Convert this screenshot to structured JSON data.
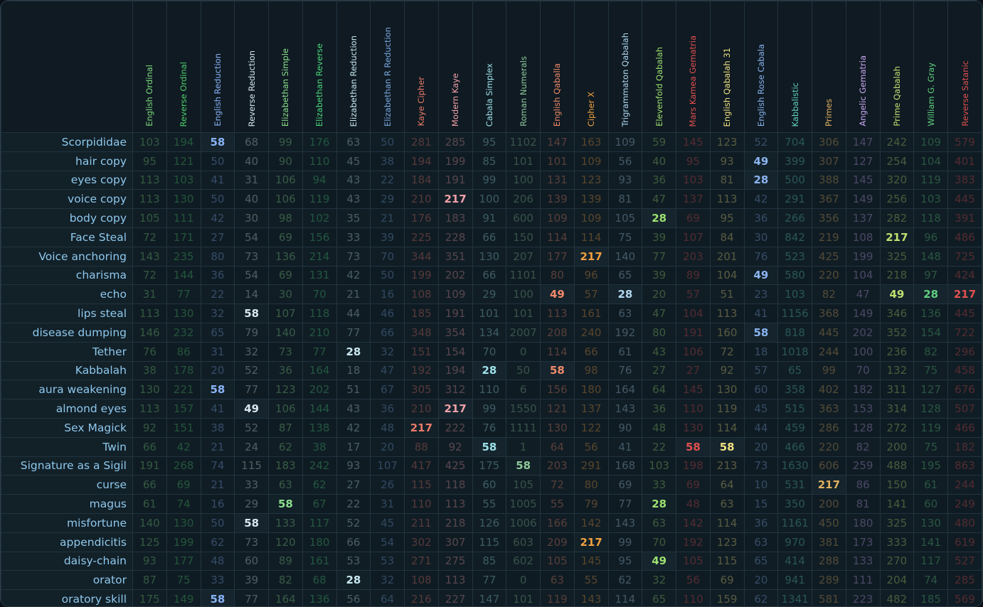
{
  "table": {
    "highlight": [
      28,
      49,
      58,
      217
    ],
    "columns": [
      {
        "name": "English Ordinal",
        "color": "#7fdc7f"
      },
      {
        "name": "Reverse Ordinal",
        "color": "#4fcf6b"
      },
      {
        "name": "English Reduction",
        "color": "#8ab4f8"
      },
      {
        "name": "Reverse Reduction",
        "color": "#d8e8ee"
      },
      {
        "name": "Elizabethan Simple",
        "color": "#8ce08c"
      },
      {
        "name": "Elizabethan Reverse",
        "color": "#4cd67c"
      },
      {
        "name": "Elizabethan Reduction",
        "color": "#c8e8f0"
      },
      {
        "name": "Elizabethan R Reduction",
        "color": "#7aa8e0"
      },
      {
        "name": "Kaye Cipher",
        "color": "#e87a6a"
      },
      {
        "name": "Modern Kaye",
        "color": "#f0a0a8"
      },
      {
        "name": "Cabala Simplex",
        "color": "#9ee0e8"
      },
      {
        "name": "Roman Numerals",
        "color": "#8ec89a"
      },
      {
        "name": "English Qaballa",
        "color": "#f08a6a"
      },
      {
        "name": "Cipher X",
        "color": "#f0a040"
      },
      {
        "name": "Trigrammaton Qabalah",
        "color": "#b0d8f0"
      },
      {
        "name": "Elevenfold Qabalah",
        "color": "#9ee070"
      },
      {
        "name": "Mars Kamea Gematria",
        "color": "#e05050"
      },
      {
        "name": "English Qabalah 31",
        "color": "#f0e080"
      },
      {
        "name": "English Rose Cabala",
        "color": "#8ab4f0"
      },
      {
        "name": "Kabbalistic",
        "color": "#60d0c0"
      },
      {
        "name": "Primes",
        "color": "#e0b060"
      },
      {
        "name": "Angelic Gematria",
        "color": "#c8a8f0"
      },
      {
        "name": "Prime Qabalah",
        "color": "#c0e070"
      },
      {
        "name": "William G. Gray",
        "color": "#60d080"
      },
      {
        "name": "Reverse Satanic",
        "color": "#e05050"
      }
    ],
    "rows": [
      {
        "label": "Scorpididae",
        "values": [
          103,
          194,
          58,
          68,
          99,
          176,
          63,
          50,
          281,
          285,
          95,
          1102,
          147,
          163,
          109,
          59,
          145,
          123,
          52,
          704,
          306,
          147,
          242,
          109,
          579
        ]
      },
      {
        "label": "hair copy",
        "values": [
          95,
          121,
          50,
          40,
          90,
          110,
          45,
          38,
          194,
          199,
          85,
          101,
          101,
          109,
          56,
          40,
          95,
          93,
          49,
          399,
          307,
          127,
          254,
          104,
          401
        ]
      },
      {
        "label": "eyes copy",
        "values": [
          113,
          103,
          41,
          31,
          106,
          94,
          43,
          22,
          184,
          191,
          99,
          100,
          131,
          123,
          93,
          36,
          103,
          81,
          28,
          500,
          388,
          145,
          320,
          119,
          383
        ]
      },
      {
        "label": "voice copy",
        "values": [
          113,
          130,
          50,
          40,
          106,
          119,
          43,
          29,
          210,
          217,
          100,
          206,
          139,
          139,
          81,
          47,
          137,
          113,
          42,
          291,
          367,
          149,
          256,
          103,
          445
        ]
      },
      {
        "label": "body copy",
        "values": [
          105,
          111,
          42,
          30,
          98,
          102,
          35,
          21,
          176,
          183,
          91,
          600,
          109,
          109,
          105,
          28,
          69,
          95,
          36,
          266,
          356,
          137,
          282,
          118,
          391
        ]
      },
      {
        "label": "Face Steal",
        "values": [
          72,
          171,
          27,
          54,
          69,
          156,
          33,
          39,
          225,
          228,
          66,
          150,
          114,
          114,
          75,
          39,
          107,
          84,
          30,
          842,
          219,
          108,
          217,
          96,
          486
        ]
      },
      {
        "label": "Voice anchoring",
        "values": [
          143,
          235,
          80,
          73,
          136,
          214,
          73,
          70,
          344,
          351,
          130,
          207,
          177,
          217,
          140,
          77,
          203,
          201,
          76,
          523,
          425,
          199,
          325,
          148,
          725
        ]
      },
      {
        "label": "charisma",
        "values": [
          72,
          144,
          36,
          54,
          69,
          131,
          42,
          50,
          199,
          202,
          66,
          1101,
          80,
          96,
          65,
          39,
          89,
          104,
          49,
          580,
          220,
          104,
          218,
          97,
          424
        ]
      },
      {
        "label": "echo",
        "values": [
          31,
          77,
          22,
          14,
          30,
          70,
          21,
          16,
          108,
          109,
          29,
          100,
          49,
          57,
          28,
          20,
          57,
          51,
          23,
          103,
          82,
          47,
          49,
          28,
          217
        ]
      },
      {
        "label": "lips steal",
        "values": [
          113,
          130,
          32,
          58,
          107,
          118,
          44,
          46,
          185,
          191,
          101,
          101,
          113,
          161,
          63,
          47,
          104,
          113,
          41,
          1156,
          368,
          149,
          346,
          136,
          445
        ]
      },
      {
        "label": "disease dumping",
        "values": [
          146,
          232,
          65,
          79,
          140,
          210,
          77,
          66,
          348,
          354,
          134,
          2007,
          208,
          240,
          192,
          80,
          191,
          160,
          58,
          818,
          445,
          202,
          352,
          154,
          722
        ]
      },
      {
        "label": "Tether",
        "values": [
          76,
          86,
          31,
          32,
          73,
          77,
          28,
          32,
          151,
          154,
          70,
          0,
          114,
          66,
          61,
          43,
          106,
          72,
          18,
          1018,
          244,
          100,
          236,
          82,
          296
        ]
      },
      {
        "label": "Kabbalah",
        "values": [
          38,
          178,
          20,
          52,
          36,
          164,
          18,
          47,
          192,
          194,
          28,
          50,
          58,
          98,
          76,
          27,
          27,
          92,
          57,
          65,
          99,
          70,
          132,
          75,
          458
        ]
      },
      {
        "label": "aura weakening",
        "values": [
          130,
          221,
          58,
          77,
          123,
          202,
          51,
          67,
          305,
          312,
          110,
          6,
          156,
          180,
          164,
          64,
          145,
          130,
          60,
          358,
          402,
          182,
          311,
          127,
          676
        ]
      },
      {
        "label": "almond eyes",
        "values": [
          113,
          157,
          41,
          49,
          106,
          144,
          43,
          36,
          210,
          217,
          99,
          1550,
          121,
          137,
          143,
          36,
          110,
          119,
          45,
          515,
          363,
          153,
          314,
          128,
          507
        ]
      },
      {
        "label": "Sex Magick",
        "values": [
          92,
          151,
          38,
          52,
          87,
          138,
          42,
          48,
          217,
          222,
          76,
          1111,
          130,
          122,
          90,
          48,
          130,
          114,
          44,
          459,
          286,
          128,
          272,
          119,
          466
        ]
      },
      {
        "label": "Twin",
        "values": [
          66,
          42,
          21,
          24,
          62,
          38,
          17,
          20,
          88,
          92,
          58,
          1,
          64,
          56,
          41,
          22,
          58,
          58,
          20,
          466,
          220,
          82,
          200,
          75,
          182
        ]
      },
      {
        "label": "Signature as a Sigil",
        "values": [
          191,
          268,
          74,
          115,
          183,
          242,
          93,
          107,
          417,
          425,
          175,
          58,
          203,
          291,
          168,
          103,
          198,
          213,
          73,
          1630,
          606,
          259,
          488,
          195,
          863
        ]
      },
      {
        "label": "curse",
        "values": [
          66,
          69,
          21,
          33,
          63,
          62,
          27,
          26,
          115,
          118,
          60,
          105,
          72,
          80,
          69,
          33,
          69,
          64,
          10,
          531,
          217,
          86,
          150,
          61,
          244
        ]
      },
      {
        "label": "magus",
        "values": [
          61,
          74,
          16,
          29,
          58,
          67,
          22,
          31,
          110,
          113,
          55,
          1005,
          55,
          79,
          77,
          28,
          48,
          63,
          15,
          350,
          200,
          81,
          141,
          60,
          249
        ]
      },
      {
        "label": "misfortune",
        "values": [
          140,
          130,
          50,
          58,
          133,
          117,
          52,
          45,
          211,
          218,
          126,
          1006,
          166,
          142,
          143,
          63,
          142,
          114,
          36,
          1161,
          450,
          180,
          325,
          130,
          480
        ]
      },
      {
        "label": "appendicitis",
        "values": [
          125,
          199,
          62,
          73,
          120,
          180,
          66,
          54,
          302,
          307,
          115,
          603,
          209,
          217,
          99,
          70,
          192,
          123,
          63,
          970,
          381,
          173,
          333,
          141,
          619
        ]
      },
      {
        "label": "daisy-chain",
        "values": [
          93,
          177,
          48,
          60,
          89,
          161,
          53,
          53,
          271,
          275,
          85,
          602,
          105,
          145,
          95,
          49,
          105,
          115,
          65,
          414,
          288,
          133,
          270,
          117,
          527
        ]
      },
      {
        "label": "orator",
        "values": [
          87,
          75,
          33,
          39,
          82,
          68,
          28,
          32,
          108,
          113,
          77,
          0,
          63,
          55,
          62,
          32,
          56,
          69,
          20,
          941,
          289,
          111,
          204,
          74,
          285
        ]
      },
      {
        "label": "oratory skill",
        "values": [
          175,
          149,
          58,
          77,
          164,
          136,
          56,
          64,
          216,
          227,
          147,
          101,
          119,
          143,
          114,
          65,
          110,
          159,
          62,
          1341,
          581,
          223,
          482,
          185,
          569
        ]
      }
    ]
  }
}
